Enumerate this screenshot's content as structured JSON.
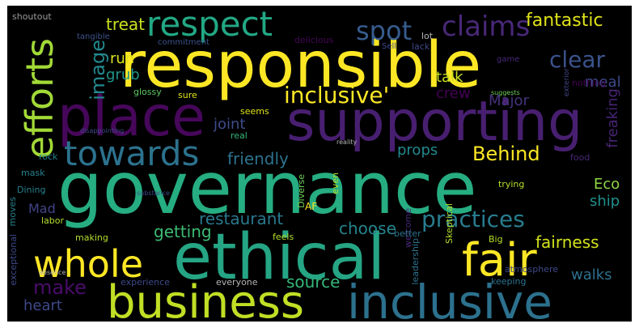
{
  "palette": {
    "yellow": "#fde725",
    "lime": "#b5de2b",
    "green": "#6ece58",
    "sea": "#35b779",
    "teal": "#1f9e89",
    "cyan": "#26828e",
    "blue": "#31688e",
    "indigo": "#3e4989",
    "violet": "#482878",
    "purple": "#440154"
  },
  "words": [
    {
      "id": "w-governance",
      "text": "governance"
    },
    {
      "id": "w-responsible",
      "text": "responsible"
    },
    {
      "id": "w-supporting",
      "text": "supporting"
    },
    {
      "id": "w-ethical",
      "text": "ethical"
    },
    {
      "id": "w-place",
      "text": "place"
    },
    {
      "id": "w-business",
      "text": "business"
    },
    {
      "id": "w-inclusive",
      "text": "inclusive"
    },
    {
      "id": "w-fair",
      "text": "fair"
    },
    {
      "id": "w-whole",
      "text": "whole"
    },
    {
      "id": "w-efforts",
      "text": "efforts"
    },
    {
      "id": "w-towards",
      "text": "towards"
    },
    {
      "id": "w-respect",
      "text": "respect"
    },
    {
      "id": "w-claims",
      "text": "claims"
    },
    {
      "id": "w-spot",
      "text": "spot"
    },
    {
      "id": "w-inclusive-q",
      "text": "inclusive'"
    },
    {
      "id": "w-practices",
      "text": "practices"
    },
    {
      "id": "w-behind",
      "text": "Behind"
    },
    {
      "id": "w-clear",
      "text": "clear"
    },
    {
      "id": "w-fantastic",
      "text": "fantastic"
    },
    {
      "id": "w-image",
      "text": "image"
    },
    {
      "id": "w-make",
      "text": "make"
    },
    {
      "id": "w-restaurant",
      "text": "restaurant"
    },
    {
      "id": "w-source",
      "text": "source"
    },
    {
      "id": "w-fairness",
      "text": "fairness"
    },
    {
      "id": "w-friendly",
      "text": "friendly"
    },
    {
      "id": "w-getting",
      "text": "getting"
    },
    {
      "id": "w-choose",
      "text": "choose"
    },
    {
      "id": "w-treat",
      "text": "treat"
    },
    {
      "id": "w-run",
      "text": "run"
    },
    {
      "id": "w-grub",
      "text": "grub"
    },
    {
      "id": "w-talk",
      "text": "talk"
    },
    {
      "id": "w-major",
      "text": "Major"
    },
    {
      "id": "w-meal",
      "text": "meal"
    },
    {
      "id": "w-crew",
      "text": "crew"
    },
    {
      "id": "w-joint",
      "text": "joint"
    },
    {
      "id": "w-props",
      "text": "props"
    },
    {
      "id": "w-eco",
      "text": "Eco"
    },
    {
      "id": "w-ship",
      "text": "ship"
    },
    {
      "id": "w-freaking",
      "text": "freaking"
    },
    {
      "id": "w-mad",
      "text": "Mad"
    },
    {
      "id": "w-heart",
      "text": "heart"
    },
    {
      "id": "w-walks",
      "text": "walks"
    },
    {
      "id": "w-shoutout",
      "text": "shoutout"
    },
    {
      "id": "w-tangible",
      "text": "tangible"
    },
    {
      "id": "w-commitment",
      "text": "commitment"
    },
    {
      "id": "w-delicious",
      "text": "delicious"
    },
    {
      "id": "w-sell",
      "text": "Sell"
    },
    {
      "id": "w-lot",
      "text": "lot"
    },
    {
      "id": "w-lack",
      "text": "lack"
    },
    {
      "id": "w-game",
      "text": "game"
    },
    {
      "id": "w-exterior",
      "text": "exterior"
    },
    {
      "id": "w-nothing",
      "text": "nothing"
    },
    {
      "id": "w-suggests",
      "text": "suggests"
    },
    {
      "id": "w-glossy",
      "text": "glossy"
    },
    {
      "id": "w-sure",
      "text": "sure"
    },
    {
      "id": "w-seems",
      "text": "seems"
    },
    {
      "id": "w-real",
      "text": "real"
    },
    {
      "id": "w-disappointing",
      "text": "disappointing"
    },
    {
      "id": "w-reality",
      "text": "reality"
    },
    {
      "id": "w-food",
      "text": "food"
    },
    {
      "id": "w-rock",
      "text": "rock"
    },
    {
      "id": "w-mask",
      "text": "mask"
    },
    {
      "id": "w-dining",
      "text": "Dining"
    },
    {
      "id": "w-moves",
      "text": "moves"
    },
    {
      "id": "w-substance",
      "text": "substance"
    },
    {
      "id": "w-diverse",
      "text": "Diverse"
    },
    {
      "id": "w-even",
      "text": "even"
    },
    {
      "id": "w-af",
      "text": "AF"
    },
    {
      "id": "w-trying",
      "text": "trying"
    },
    {
      "id": "w-welcome",
      "text": "welcome"
    },
    {
      "id": "w-labor",
      "text": "labor"
    },
    {
      "id": "w-making",
      "text": "making"
    },
    {
      "id": "w-feels",
      "text": "feels"
    },
    {
      "id": "w-better",
      "text": "better"
    },
    {
      "id": "w-skeptical",
      "text": "Skeptical"
    },
    {
      "id": "w-big",
      "text": "Big"
    },
    {
      "id": "w-exceptional",
      "text": "exceptional"
    },
    {
      "id": "w-absence",
      "text": "absence"
    },
    {
      "id": "w-leadership",
      "text": "leadership"
    },
    {
      "id": "w-atmosphere",
      "text": "atmosphere"
    },
    {
      "id": "w-experience",
      "text": "experience"
    },
    {
      "id": "w-everyone",
      "text": "everyone"
    },
    {
      "id": "w-keeping",
      "text": "keeping"
    }
  ]
}
